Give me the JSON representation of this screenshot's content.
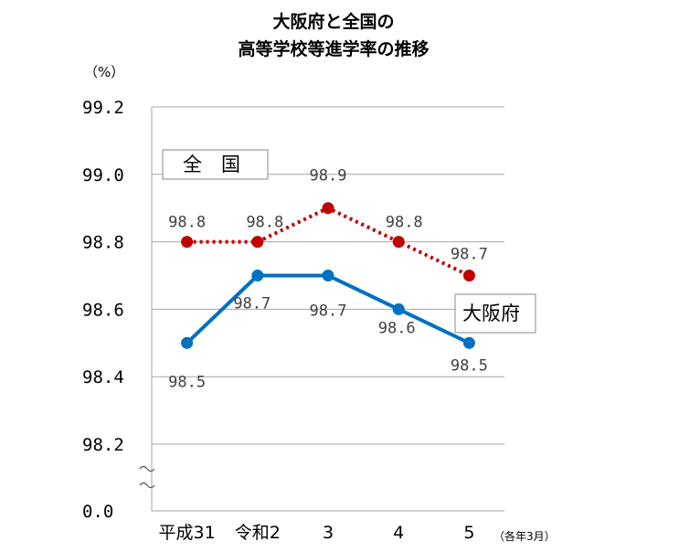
{
  "chart_data": {
    "type": "line",
    "title_lines": [
      "大阪府と全国の",
      "高等学校等進学率の推移"
    ],
    "y_unit": "（%）",
    "x_note": "（各年3月）",
    "categories": [
      "平成31",
      "令和2",
      "3",
      "4",
      "5"
    ],
    "y_ticks": [
      "99.2",
      "99.0",
      "98.8",
      "98.6",
      "98.4",
      "98.2",
      "0.0"
    ],
    "ylim": [
      98.2,
      99.2
    ],
    "axis_break": true,
    "grid": true,
    "series": [
      {
        "name": "全　国",
        "values": [
          98.8,
          98.8,
          98.9,
          98.8,
          98.7
        ],
        "labels": [
          "98.8",
          "98.8",
          "98.9",
          "98.8",
          "98.7"
        ],
        "color": "#C00000",
        "line_style": "dotted"
      },
      {
        "name": "大阪府",
        "values": [
          98.5,
          98.7,
          98.7,
          98.6,
          98.5
        ],
        "labels": [
          "98.5",
          "98.7",
          "98.7",
          "98.6",
          "98.5"
        ],
        "color": "#0070C0",
        "line_style": "solid"
      }
    ]
  }
}
